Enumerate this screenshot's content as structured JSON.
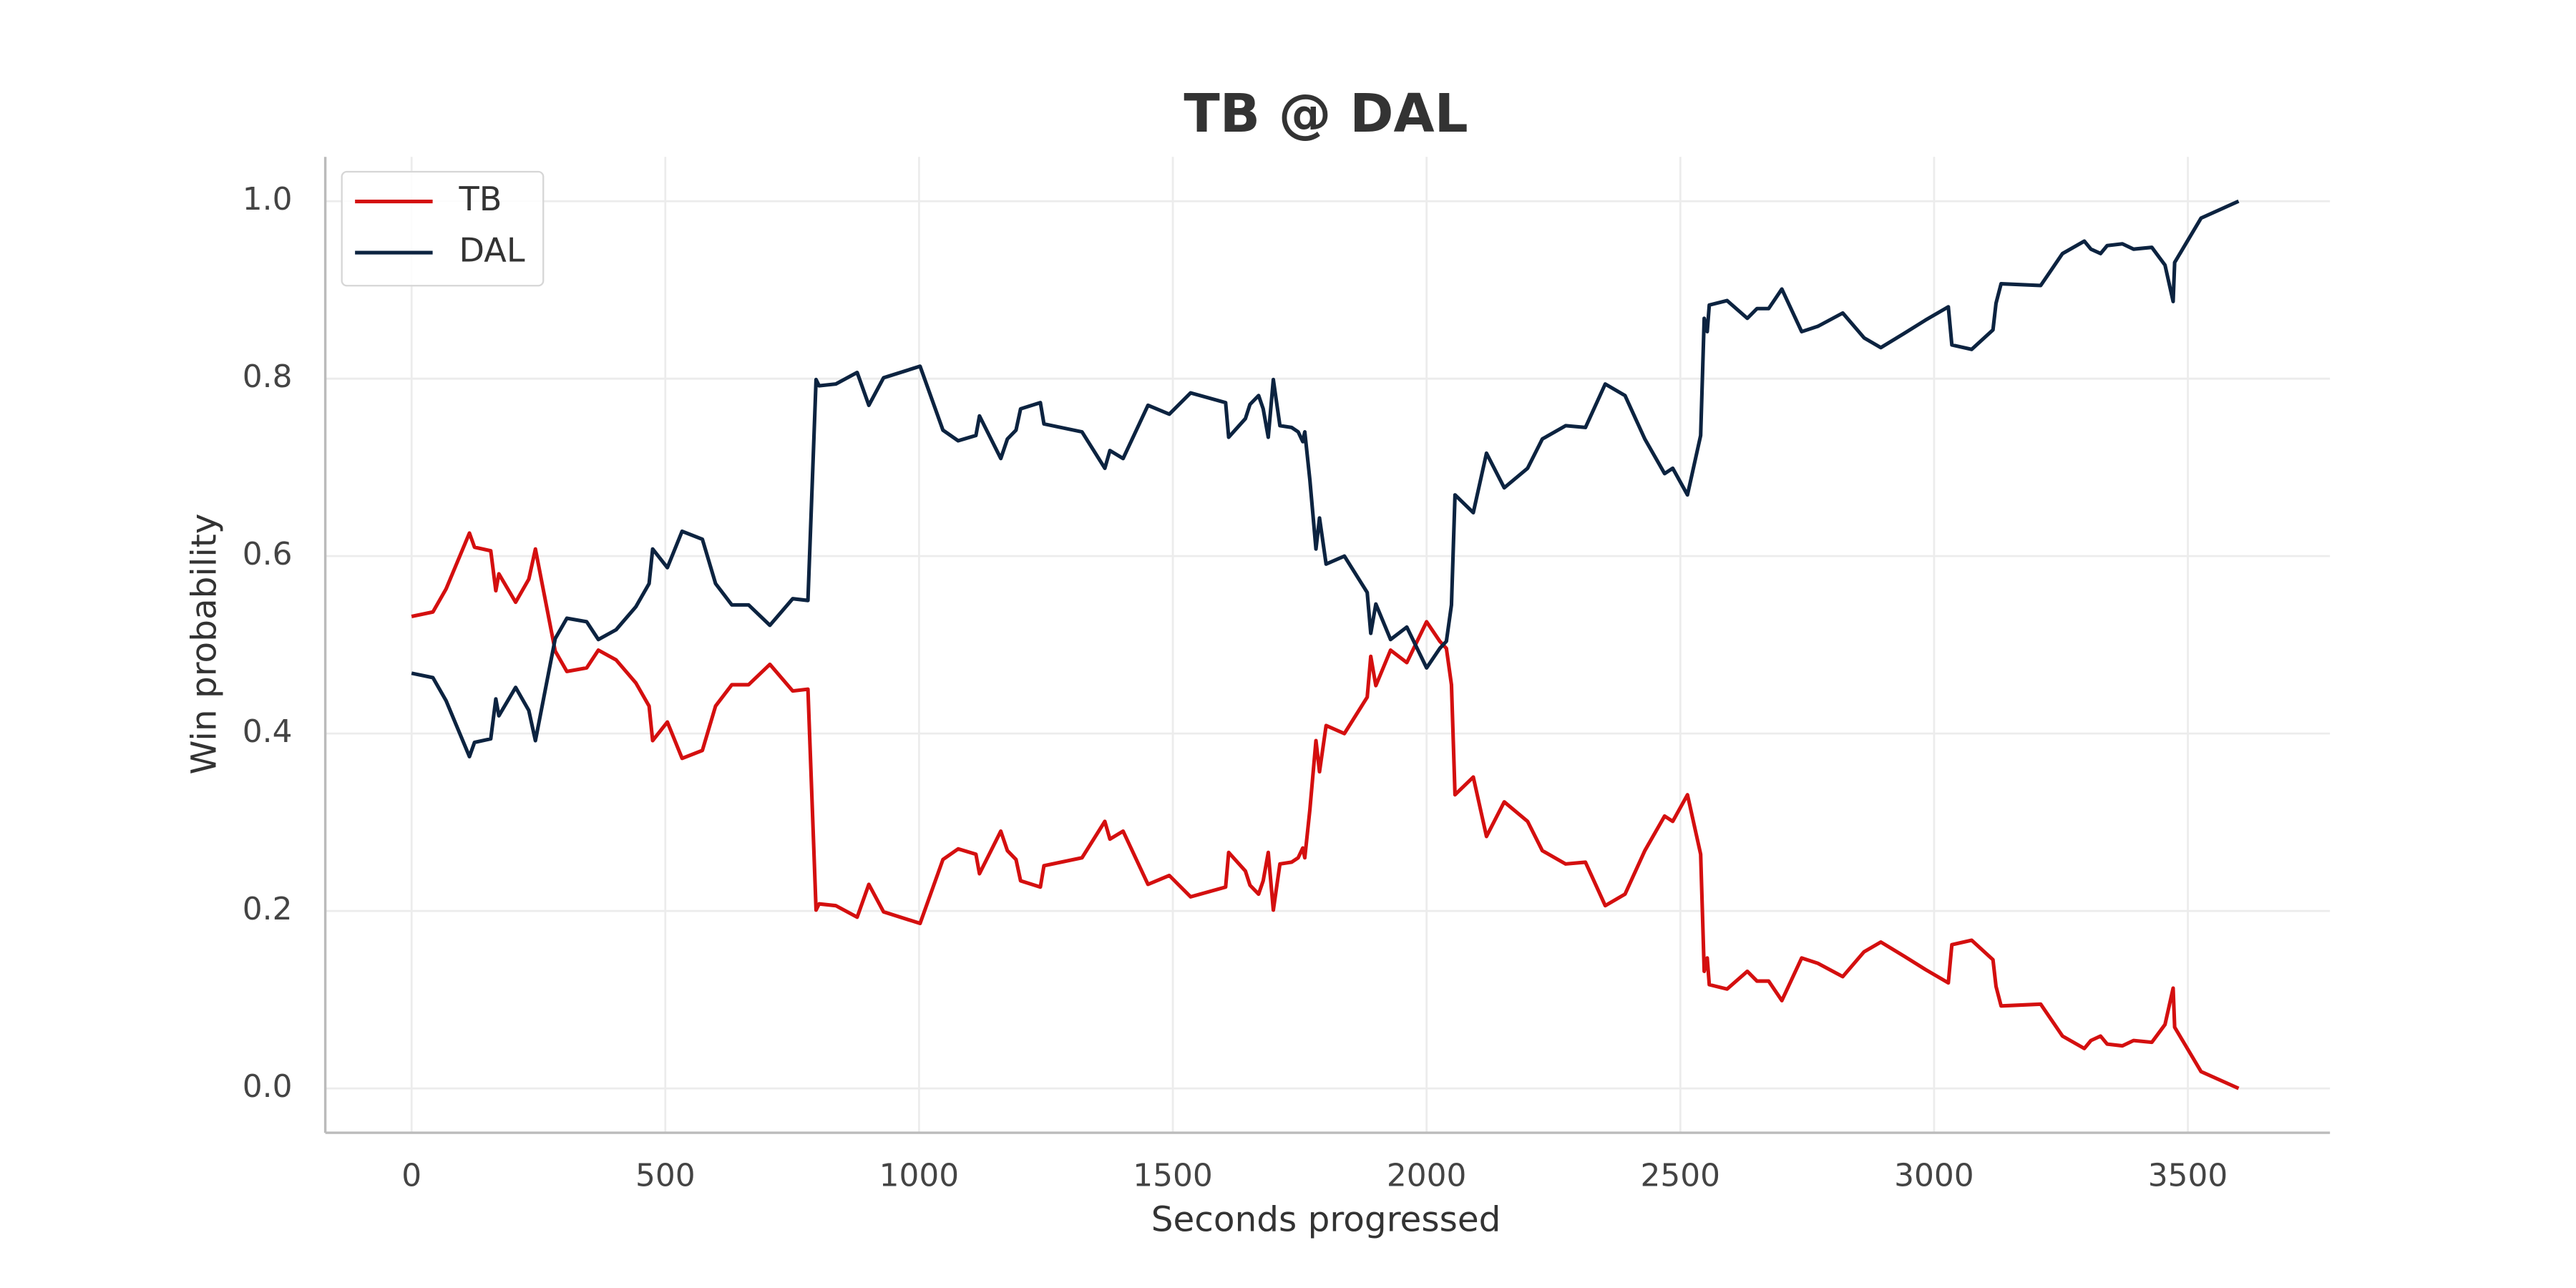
{
  "chart_data": {
    "type": "line",
    "title": "TB @ DAL",
    "xlabel": "Seconds progressed",
    "ylabel": "Win probability",
    "x": [
      0,
      42,
      68,
      114,
      124,
      156,
      166,
      172,
      205,
      231,
      244,
      283,
      306,
      345,
      368,
      403,
      442,
      468,
      475,
      504,
      533,
      573,
      599,
      631,
      664,
      706,
      751,
      781,
      797,
      803,
      836,
      878,
      901,
      930,
      1002,
      1047,
      1077,
      1112,
      1119,
      1161,
      1174,
      1191,
      1200,
      1239,
      1246,
      1321,
      1366,
      1376,
      1402,
      1451,
      1493,
      1535,
      1604,
      1610,
      1643,
      1652,
      1669,
      1678,
      1688,
      1698,
      1711,
      1734,
      1747,
      1756,
      1760,
      1770,
      1782,
      1789,
      1802,
      1838,
      1883,
      1890,
      1900,
      1929,
      1961,
      2000,
      2026,
      2039,
      2049,
      2056,
      2092,
      2118,
      2153,
      2199,
      2228,
      2274,
      2313,
      2352,
      2391,
      2430,
      2469,
      2485,
      2514,
      2540,
      2547,
      2553,
      2557,
      2592,
      2632,
      2651,
      2674,
      2700,
      2739,
      2771,
      2820,
      2862,
      2895,
      2941,
      2983,
      3028,
      3035,
      3074,
      3116,
      3122,
      3132,
      3210,
      3253,
      3296,
      3309,
      3328,
      3341,
      3371,
      3393,
      3429,
      3455,
      3471,
      3474,
      3526,
      3600
    ],
    "series": [
      {
        "name": "TB",
        "color": "#d40f0f",
        "values": [
          0.532,
          0.537,
          0.563,
          0.626,
          0.61,
          0.606,
          0.561,
          0.58,
          0.548,
          0.574,
          0.608,
          0.493,
          0.47,
          0.474,
          0.494,
          0.483,
          0.457,
          0.431,
          0.392,
          0.413,
          0.372,
          0.381,
          0.431,
          0.455,
          0.455,
          0.478,
          0.448,
          0.45,
          0.201,
          0.208,
          0.206,
          0.193,
          0.23,
          0.199,
          0.186,
          0.258,
          0.27,
          0.264,
          0.242,
          0.29,
          0.268,
          0.258,
          0.234,
          0.227,
          0.251,
          0.26,
          0.301,
          0.281,
          0.29,
          0.23,
          0.24,
          0.216,
          0.227,
          0.266,
          0.245,
          0.229,
          0.219,
          0.234,
          0.266,
          0.201,
          0.253,
          0.255,
          0.26,
          0.271,
          0.26,
          0.314,
          0.392,
          0.357,
          0.409,
          0.4,
          0.441,
          0.487,
          0.454,
          0.494,
          0.48,
          0.526,
          0.504,
          0.496,
          0.455,
          0.331,
          0.351,
          0.284,
          0.323,
          0.301,
          0.268,
          0.253,
          0.255,
          0.206,
          0.219,
          0.268,
          0.307,
          0.301,
          0.331,
          0.264,
          0.132,
          0.147,
          0.117,
          0.112,
          0.132,
          0.121,
          0.121,
          0.099,
          0.147,
          0.141,
          0.126,
          0.154,
          0.165,
          0.149,
          0.134,
          0.119,
          0.162,
          0.167,
          0.145,
          0.115,
          0.093,
          0.095,
          0.059,
          0.045,
          0.054,
          0.059,
          0.05,
          0.048,
          0.054,
          0.052,
          0.072,
          0.113,
          0.069,
          0.019,
          0.0
        ]
      },
      {
        "name": "DAL",
        "color": "#0c2340",
        "values": [
          0.468,
          0.463,
          0.437,
          0.374,
          0.39,
          0.394,
          0.439,
          0.42,
          0.452,
          0.426,
          0.392,
          0.507,
          0.53,
          0.526,
          0.506,
          0.517,
          0.543,
          0.569,
          0.608,
          0.587,
          0.628,
          0.619,
          0.569,
          0.545,
          0.545,
          0.522,
          0.552,
          0.55,
          0.799,
          0.792,
          0.794,
          0.807,
          0.77,
          0.801,
          0.814,
          0.742,
          0.73,
          0.736,
          0.758,
          0.71,
          0.732,
          0.742,
          0.766,
          0.773,
          0.749,
          0.74,
          0.699,
          0.719,
          0.71,
          0.77,
          0.76,
          0.784,
          0.773,
          0.734,
          0.755,
          0.771,
          0.781,
          0.766,
          0.734,
          0.799,
          0.747,
          0.745,
          0.74,
          0.729,
          0.74,
          0.686,
          0.608,
          0.643,
          0.591,
          0.6,
          0.559,
          0.513,
          0.546,
          0.506,
          0.52,
          0.474,
          0.496,
          0.504,
          0.545,
          0.669,
          0.649,
          0.716,
          0.677,
          0.699,
          0.732,
          0.747,
          0.745,
          0.794,
          0.781,
          0.732,
          0.693,
          0.699,
          0.669,
          0.736,
          0.868,
          0.853,
          0.883,
          0.888,
          0.868,
          0.879,
          0.879,
          0.901,
          0.853,
          0.859,
          0.874,
          0.846,
          0.835,
          0.851,
          0.866,
          0.881,
          0.838,
          0.833,
          0.855,
          0.885,
          0.907,
          0.905,
          0.941,
          0.955,
          0.946,
          0.941,
          0.95,
          0.952,
          0.946,
          0.948,
          0.928,
          0.887,
          0.931,
          0.981,
          1.0
        ]
      }
    ],
    "xlim": [
      -170,
      3780
    ],
    "ylim": [
      -0.05,
      1.05
    ],
    "xticks": [
      0,
      500,
      1000,
      1500,
      2000,
      2500,
      3000,
      3500
    ],
    "yticks": [
      {
        "value": 0,
        "label": "0.0"
      },
      0.2,
      0.4,
      0.6,
      0.8,
      {
        "value": 1,
        "label": "1.0"
      }
    ],
    "grid": true,
    "legend": "upper left"
  }
}
